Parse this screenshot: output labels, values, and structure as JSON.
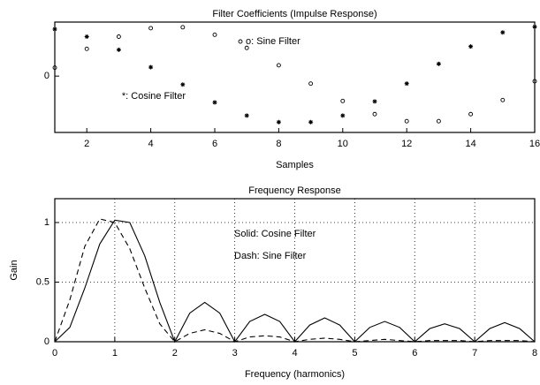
{
  "chart_data": [
    {
      "type": "scatter",
      "title": "Filter Coefficients (Impulse Response)",
      "xlabel": "Samples",
      "xlim": [
        1,
        16
      ],
      "xticks": [
        2,
        4,
        6,
        8,
        10,
        12,
        14,
        16
      ],
      "ylim": [
        -1.2,
        1.15
      ],
      "yticks": [
        0
      ],
      "grid": false,
      "x": [
        1,
        2,
        3,
        4,
        5,
        6,
        7,
        8,
        9,
        10,
        11,
        12,
        13,
        14,
        15,
        16
      ],
      "series": [
        {
          "name": "*: Cosine Filter",
          "color": "#000000",
          "marker": "star",
          "values": [
            1.0,
            0.84,
            0.56,
            0.19,
            -0.18,
            -0.56,
            -0.84,
            -0.98,
            -0.98,
            -0.84,
            -0.54,
            -0.16,
            0.26,
            0.63,
            0.93,
            1.05
          ]
        },
        {
          "name": "o: Sine Filter",
          "color": "#000000",
          "marker": "circle",
          "values": [
            0.18,
            0.58,
            0.84,
            1.02,
            1.04,
            0.88,
            0.6,
            0.23,
            -0.16,
            -0.53,
            -0.81,
            -0.96,
            -0.96,
            -0.81,
            -0.51,
            -0.11
          ]
        }
      ]
    },
    {
      "type": "line",
      "title": "Frequency Response",
      "xlabel": "Frequency (harmonics)",
      "ylabel": "Gain",
      "xlim": [
        0,
        8
      ],
      "xticks": [
        0,
        1,
        2,
        3,
        4,
        5,
        6,
        7,
        8
      ],
      "ylim": [
        0,
        1.2
      ],
      "yticks": [
        0,
        0.5,
        1
      ],
      "grid": true,
      "x": [
        0,
        0.25,
        0.5,
        0.75,
        1,
        1.25,
        1.5,
        1.75,
        2,
        2.25,
        2.5,
        2.75,
        3,
        3.25,
        3.5,
        3.75,
        4,
        4.25,
        4.5,
        4.75,
        5,
        5.25,
        5.5,
        5.75,
        6,
        6.25,
        6.5,
        6.75,
        7,
        7.25,
        7.5,
        7.75,
        8
      ],
      "series": [
        {
          "name": "Solid: Cosine Filter",
          "color": "#000000",
          "dash": "solid",
          "values": [
            0,
            0.12,
            0.45,
            0.82,
            1.02,
            1.0,
            0.72,
            0.33,
            0,
            0.24,
            0.33,
            0.24,
            0,
            0.17,
            0.23,
            0.17,
            0,
            0.14,
            0.2,
            0.14,
            0,
            0.12,
            0.17,
            0.12,
            0,
            0.11,
            0.15,
            0.11,
            0,
            0.11,
            0.16,
            0.11,
            0
          ]
        },
        {
          "name": "Dash: Sine Filter",
          "color": "#000000",
          "dash": "dashed",
          "values": [
            0,
            0.35,
            0.8,
            1.03,
            1.0,
            0.78,
            0.45,
            0.15,
            0,
            0.07,
            0.1,
            0.07,
            0,
            0.04,
            0.05,
            0.04,
            0,
            0.02,
            0.03,
            0.02,
            0,
            0.01,
            0.02,
            0.01,
            0,
            0.01,
            0.01,
            0.01,
            0,
            0.01,
            0.01,
            0.01,
            0
          ]
        }
      ]
    }
  ]
}
